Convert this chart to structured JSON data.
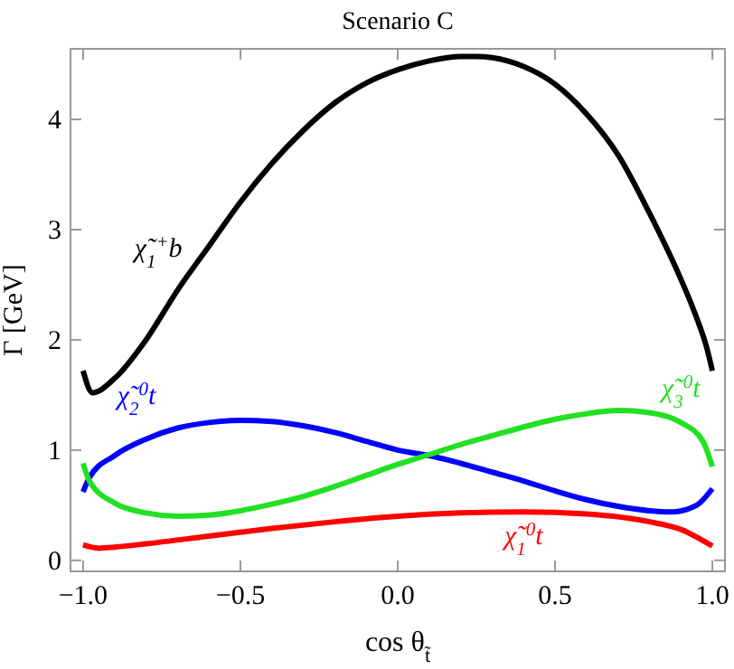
{
  "chart_data": {
    "type": "line",
    "title": "Scenario C",
    "xlabel": "cos θ$_{t̃}$",
    "ylabel": "Γ [GeV]",
    "xlim": [
      -1.04,
      1.04
    ],
    "ylim": [
      -0.1,
      4.64
    ],
    "xticks": [
      {
        "value": -1,
        "label": "−1.0"
      },
      {
        "value": -0.5,
        "label": "−0.5"
      },
      {
        "value": 0,
        "label": "0.0"
      },
      {
        "value": 0.5,
        "label": "0.5"
      },
      {
        "value": 1,
        "label": "1.0"
      }
    ],
    "yticks": [
      0,
      1,
      2,
      3,
      4
    ],
    "grid": false,
    "line_style": "solid",
    "marker": "none",
    "x": [
      -1,
      -0.97,
      -0.9,
      -0.8,
      -0.7,
      -0.6,
      -0.5,
      -0.4,
      -0.3,
      -0.2,
      -0.1,
      0,
      0.1,
      0.2,
      0.25,
      0.3,
      0.4,
      0.5,
      0.6,
      0.7,
      0.8,
      0.9,
      0.95,
      0.98,
      1
    ],
    "series": [
      {
        "name": "χ̃$_{1}$$^{+}$b",
        "color": "#000000",
        "values": [
          1.72,
          1.52,
          1.65,
          2.0,
          2.45,
          2.85,
          3.25,
          3.6,
          3.9,
          4.15,
          4.33,
          4.45,
          4.53,
          4.57,
          4.57,
          4.56,
          4.48,
          4.32,
          4.05,
          3.68,
          3.15,
          2.55,
          2.2,
          1.95,
          1.72
        ]
      },
      {
        "name": "χ̃$_{2}$$^{0}$t",
        "color": "#0000ff",
        "x": [
          -1,
          -0.98,
          -0.9,
          -0.8,
          -0.7,
          -0.6,
          -0.5,
          -0.4,
          -0.3,
          -0.2,
          -0.1,
          0,
          0.1,
          0.2,
          0.3,
          0.4,
          0.5,
          0.6,
          0.7,
          0.8,
          0.87,
          0.95,
          1
        ],
        "values": [
          0.62,
          0.75,
          0.95,
          1.1,
          1.2,
          1.25,
          1.27,
          1.26,
          1.22,
          1.16,
          1.08,
          1.0,
          0.95,
          0.88,
          0.8,
          0.72,
          0.63,
          0.55,
          0.49,
          0.45,
          0.44,
          0.5,
          0.65
        ]
      },
      {
        "name": "χ̃$_{3}$$^{0}$t",
        "color": "#22e022",
        "x": [
          -1,
          -0.98,
          -0.9,
          -0.8,
          -0.7,
          -0.6,
          -0.5,
          -0.4,
          -0.3,
          -0.2,
          -0.1,
          0,
          0.1,
          0.2,
          0.3,
          0.4,
          0.5,
          0.6,
          0.7,
          0.8,
          0.9,
          0.97,
          1
        ],
        "values": [
          0.88,
          0.72,
          0.52,
          0.43,
          0.4,
          0.41,
          0.45,
          0.51,
          0.58,
          0.67,
          0.77,
          0.87,
          0.96,
          1.05,
          1.13,
          1.21,
          1.28,
          1.33,
          1.36,
          1.34,
          1.25,
          1.08,
          0.85
        ]
      },
      {
        "name": "χ̃$_{1}$$^{0}$t",
        "color": "#ff0000",
        "x": [
          -1,
          -0.95,
          -0.9,
          -0.8,
          -0.6,
          -0.4,
          -0.2,
          0,
          0.2,
          0.4,
          0.6,
          0.8,
          0.9,
          1
        ],
        "values": [
          0.14,
          0.11,
          0.12,
          0.15,
          0.22,
          0.29,
          0.35,
          0.4,
          0.43,
          0.44,
          0.42,
          0.35,
          0.28,
          0.13
        ]
      }
    ]
  }
}
